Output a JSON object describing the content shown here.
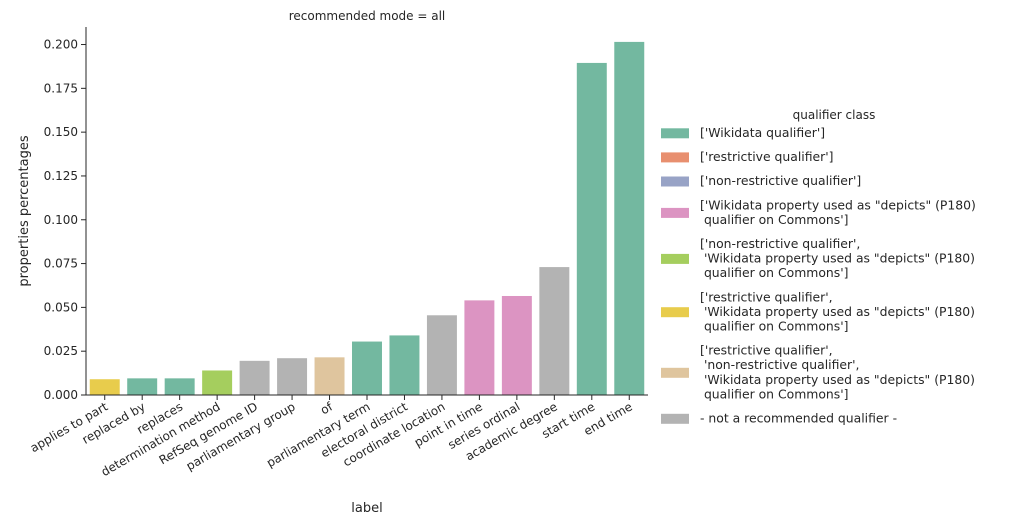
{
  "chart_data": {
    "type": "bar",
    "title": "recommended mode = all",
    "xlabel": "label",
    "ylabel": "properties percentages",
    "ylim": [
      0,
      0.21
    ],
    "yticks": [
      "0.000",
      "0.025",
      "0.050",
      "0.075",
      "0.100",
      "0.125",
      "0.150",
      "0.175",
      "0.200"
    ],
    "grid": false,
    "categories": [
      "applies to part",
      "replaced by",
      "replaces",
      "determination method",
      "RefSeq genome ID",
      "parliamentary group",
      "of",
      "parliamentary term",
      "electoral district",
      "coordinate location",
      "point in time",
      "series ordinal",
      "academic degree",
      "start time",
      "end time"
    ],
    "values": [
      0.009,
      0.0095,
      0.0095,
      0.014,
      0.0195,
      0.021,
      0.0215,
      0.0305,
      0.034,
      0.0455,
      0.054,
      0.0565,
      0.073,
      0.1895,
      0.2015
    ],
    "bar_class": [
      5,
      0,
      0,
      4,
      7,
      7,
      6,
      0,
      0,
      7,
      3,
      3,
      7,
      0,
      0
    ],
    "legend": {
      "title": "qualifier class",
      "placement": "right",
      "entries": [
        {
          "lines": [
            "['Wikidata qualifier']"
          ],
          "color": "#73b8a0"
        },
        {
          "lines": [
            "['restrictive qualifier']"
          ],
          "color": "#e88f6f"
        },
        {
          "lines": [
            "['non-restrictive qualifier']"
          ],
          "color": "#98a3c6"
        },
        {
          "lines": [
            "['Wikidata property used as \"depicts\" (P180)",
            " qualifier on Commons']"
          ],
          "color": "#dc94c2"
        },
        {
          "lines": [
            "['non-restrictive qualifier',",
            " 'Wikidata property used as \"depicts\" (P180)",
            " qualifier on Commons']"
          ],
          "color": "#a5ce5e"
        },
        {
          "lines": [
            "['restrictive qualifier',",
            " 'Wikidata property used as \"depicts\" (P180)",
            " qualifier on Commons']"
          ],
          "color": "#e8cc4c"
        },
        {
          "lines": [
            "['restrictive qualifier',",
            " 'non-restrictive qualifier',",
            " 'Wikidata property used as \"depicts\" (P180)",
            " qualifier on Commons']"
          ],
          "color": "#dfc59e"
        },
        {
          "lines": [
            "- not a recommended qualifier -"
          ],
          "color": "#b3b3b3"
        }
      ]
    }
  }
}
